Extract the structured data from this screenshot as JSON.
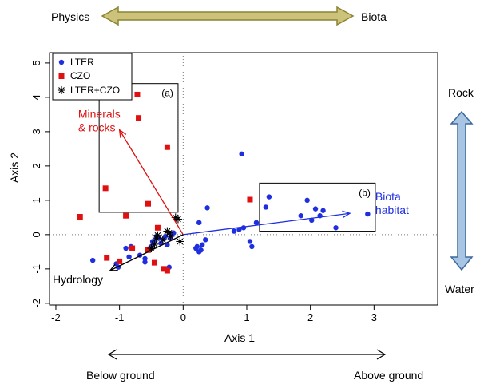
{
  "chart_data": {
    "type": "scatter",
    "xlabel": "Axis 1",
    "ylabel": "Axis 2",
    "xlim": [
      -2.1,
      4.0
    ],
    "ylim": [
      -2.05,
      5.3
    ],
    "x_ticks": [
      -2,
      -1,
      0,
      1,
      2,
      3
    ],
    "y_ticks": [
      -2,
      -1,
      0,
      1,
      2,
      3,
      4,
      5
    ],
    "reference_lines": {
      "x": 0,
      "y": 0,
      "style": "dotted"
    },
    "legend": {
      "position": "top-left",
      "entries": [
        {
          "label": "LTER",
          "marker": "circle",
          "color": "#1f2fe0"
        },
        {
          "label": "CZO",
          "marker": "square",
          "color": "#e01010"
        },
        {
          "label": "LTER+CZO",
          "marker": "asterisk",
          "color": "#000000"
        }
      ]
    },
    "series": [
      {
        "name": "LTER",
        "color": "#1f2fe0",
        "points": [
          [
            -1.42,
            -0.75
          ],
          [
            -1.02,
            -0.95
          ],
          [
            -1.05,
            -0.85
          ],
          [
            -0.85,
            -0.65
          ],
          [
            -0.9,
            -0.4
          ],
          [
            -0.82,
            -0.35
          ],
          [
            -0.68,
            -0.6
          ],
          [
            -0.6,
            -0.8
          ],
          [
            -0.6,
            -0.7
          ],
          [
            -0.55,
            -0.42
          ],
          [
            -0.5,
            -0.35
          ],
          [
            -0.48,
            -0.2
          ],
          [
            -0.44,
            -0.18
          ],
          [
            -0.42,
            -0.05
          ],
          [
            -0.38,
            -0.1
          ],
          [
            -0.35,
            -0.25
          ],
          [
            -0.3,
            -0.12
          ],
          [
            -0.28,
            -0.05
          ],
          [
            -0.25,
            -0.3
          ],
          [
            -0.22,
            -0.95
          ],
          [
            -0.2,
            -0.1
          ],
          [
            -0.18,
            0.0
          ],
          [
            -0.15,
            0.05
          ],
          [
            0.2,
            -0.4
          ],
          [
            0.22,
            -0.35
          ],
          [
            0.25,
            -0.5
          ],
          [
            0.28,
            -0.45
          ],
          [
            0.3,
            -0.3
          ],
          [
            0.35,
            -0.15
          ],
          [
            0.25,
            0.35
          ],
          [
            0.38,
            0.78
          ],
          [
            0.8,
            0.1
          ],
          [
            0.88,
            0.15
          ],
          [
            0.92,
            2.35
          ],
          [
            0.95,
            0.2
          ],
          [
            1.05,
            -0.2
          ],
          [
            1.08,
            -0.35
          ],
          [
            1.15,
            0.35
          ],
          [
            1.3,
            0.8
          ],
          [
            1.35,
            1.1
          ],
          [
            1.85,
            0.55
          ],
          [
            1.95,
            1.0
          ],
          [
            2.02,
            0.42
          ],
          [
            2.08,
            0.75
          ],
          [
            2.15,
            0.55
          ],
          [
            2.2,
            0.7
          ],
          [
            2.4,
            0.2
          ],
          [
            2.9,
            0.6
          ]
        ]
      },
      {
        "name": "CZO",
        "color": "#e01010",
        "points": [
          [
            -1.62,
            0.52
          ],
          [
            -1.22,
            1.35
          ],
          [
            -1.2,
            -0.68
          ],
          [
            -1.0,
            -0.78
          ],
          [
            -0.9,
            0.55
          ],
          [
            -0.8,
            -0.4
          ],
          [
            -0.72,
            4.08
          ],
          [
            -0.7,
            3.4
          ],
          [
            -0.55,
            -0.45
          ],
          [
            -0.55,
            0.9
          ],
          [
            -0.45,
            -0.82
          ],
          [
            -0.4,
            0.2
          ],
          [
            -0.3,
            -1.0
          ],
          [
            -0.25,
            -1.05
          ],
          [
            -0.25,
            2.55
          ],
          [
            1.05,
            1.02
          ]
        ]
      },
      {
        "name": "LTER+CZO",
        "color": "#000000",
        "points": [
          [
            -0.5,
            -0.4
          ],
          [
            -0.45,
            -0.28
          ],
          [
            -0.42,
            -0.1
          ],
          [
            -0.4,
            -0.02
          ],
          [
            -0.32,
            -0.15
          ],
          [
            -0.25,
            0.1
          ],
          [
            -0.22,
            0.05
          ],
          [
            -0.2,
            -0.05
          ],
          [
            -0.12,
            0.5
          ],
          [
            -0.08,
            0.45
          ],
          [
            -0.05,
            -0.2
          ]
        ]
      }
    ],
    "vectors": [
      {
        "label": "Minerals\n& rocks",
        "color": "#e01010",
        "end": [
          -1.0,
          3.05
        ],
        "label_pos": [
          -1.65,
          3.4
        ]
      },
      {
        "label": "Biota\nhabitat",
        "color": "#1f2fe0",
        "end": [
          2.62,
          0.62
        ],
        "label_pos": [
          3.02,
          1.0
        ]
      },
      {
        "label": "Hydrology",
        "color": "#000000",
        "end": [
          -1.15,
          -1.05
        ],
        "label_pos": [
          -2.05,
          -1.42
        ]
      }
    ],
    "boxes": [
      {
        "label": "(a)",
        "x0": -1.32,
        "x1": -0.08,
        "y0": 0.65,
        "y1": 4.4
      },
      {
        "label": "(b)",
        "x0": 1.2,
        "x1": 3.02,
        "y0": 0.1,
        "y1": 1.5
      }
    ]
  },
  "annotations": {
    "physics": "Physics",
    "biota": "Biota",
    "rock": "Rock",
    "water": "Water",
    "below_ground": "Below ground",
    "above_ground": "Above ground"
  },
  "colors": {
    "gradient_arrow_fill": "#cdc27a",
    "gradient_arrow_stroke": "#8c8432",
    "vertical_arrow_fill": "#a9c5e4",
    "vertical_arrow_stroke": "#3d6a9c"
  }
}
